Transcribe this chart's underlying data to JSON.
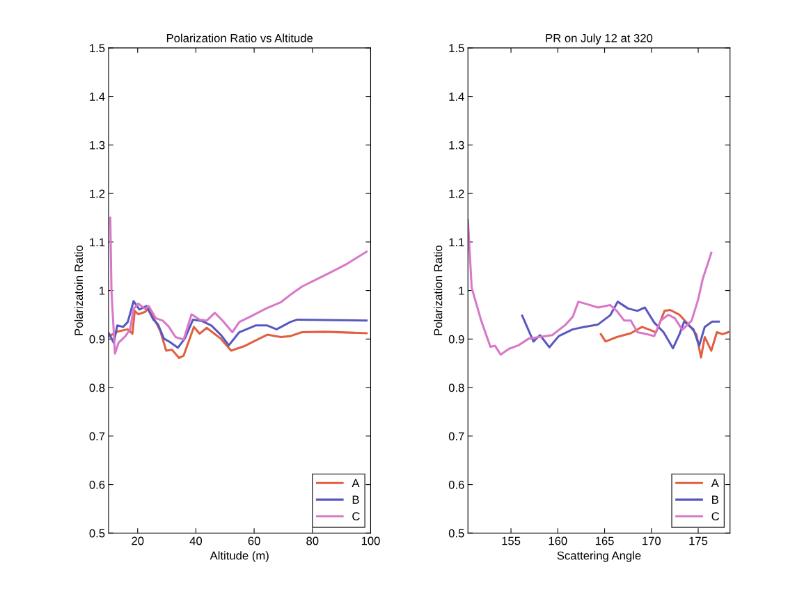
{
  "chart_data": [
    {
      "type": "line",
      "title": "Polarization Ratio vs Altitude",
      "xlabel": "Altitude (m)",
      "ylabel": "Polarizatoin Ratio",
      "xlim": [
        10,
        100
      ],
      "xticks": [
        20,
        40,
        60,
        80,
        100
      ],
      "ylim": [
        0.5,
        1.5
      ],
      "yticks": [
        0.5,
        0.6,
        0.7,
        0.8,
        0.9,
        1,
        1.1,
        1.2,
        1.3,
        1.4,
        1.5
      ],
      "grid": false,
      "legend": "bottom right",
      "series": [
        {
          "name": "A",
          "color": "#e06040",
          "x": [
            10.2,
            13.4,
            16.6,
            18.2,
            19.0,
            20.2,
            22.6,
            23.8,
            25.8,
            27.8,
            29.8,
            31.8,
            34.2,
            35.8,
            39.3,
            41.3,
            43.7,
            48.5,
            52.1,
            56.5,
            60.5,
            64.5,
            69.2,
            72.4,
            76.4,
            84.4,
            98.6
          ],
          "values": [
            0.906,
            0.916,
            0.92,
            0.911,
            0.958,
            0.951,
            0.956,
            0.965,
            0.94,
            0.916,
            0.876,
            0.878,
            0.861,
            0.866,
            0.925,
            0.911,
            0.923,
            0.901,
            0.876,
            0.885,
            0.897,
            0.909,
            0.904,
            0.906,
            0.914,
            0.915,
            0.912
          ]
        },
        {
          "name": "B",
          "color": "#5858c0",
          "x": [
            10.2,
            11.8,
            13.0,
            15.0,
            16.6,
            18.6,
            20.6,
            23.0,
            25.4,
            27.0,
            29.0,
            31.0,
            33.8,
            36.2,
            39.0,
            42.2,
            45.3,
            48.5,
            51.3,
            54.9,
            60.5,
            64.5,
            67.7,
            72.4,
            74.8,
            98.6
          ],
          "values": [
            0.911,
            0.892,
            0.928,
            0.925,
            0.935,
            0.978,
            0.961,
            0.968,
            0.94,
            0.93,
            0.901,
            0.894,
            0.882,
            0.901,
            0.94,
            0.937,
            0.928,
            0.909,
            0.887,
            0.914,
            0.928,
            0.928,
            0.92,
            0.935,
            0.94,
            0.938
          ]
        },
        {
          "name": "C",
          "color": "#d878c8",
          "x": [
            10.6,
            11.0,
            12.2,
            13.4,
            15.8,
            17.4,
            18.6,
            20.2,
            22.6,
            23.8,
            26.2,
            28.6,
            30.6,
            33.0,
            35.8,
            38.5,
            41.3,
            43.7,
            46.5,
            49.3,
            52.5,
            54.9,
            58.9,
            64.5,
            69.2,
            72.4,
            76.4,
            80.4,
            84.4,
            88.4,
            91.6,
            98.6
          ],
          "values": [
            1.15,
            1.0,
            0.87,
            0.892,
            0.906,
            0.92,
            0.962,
            0.973,
            0.962,
            0.968,
            0.943,
            0.938,
            0.926,
            0.904,
            0.899,
            0.951,
            0.94,
            0.938,
            0.954,
            0.937,
            0.914,
            0.935,
            0.947,
            0.964,
            0.976,
            0.991,
            1.008,
            1.02,
            1.032,
            1.044,
            1.054,
            1.08
          ]
        }
      ]
    },
    {
      "type": "line",
      "title": "PR on July 12 at 320",
      "xlabel": "Scattering Angle",
      "ylabel": "Polarization Ratio",
      "xlim": [
        150.4,
        178.4
      ],
      "xticks": [
        155,
        160,
        165,
        170,
        175
      ],
      "ylim": [
        0.5,
        1.5
      ],
      "yticks": [
        0.5,
        0.6,
        0.7,
        0.8,
        0.9,
        1,
        1.1,
        1.2,
        1.3,
        1.4,
        1.5
      ],
      "grid": false,
      "legend": "bottom right",
      "series": [
        {
          "name": "A",
          "color": "#e06040",
          "x": [
            164.6,
            165.1,
            166.3,
            167.8,
            169.0,
            170.5,
            171.4,
            172.0,
            173.0,
            174.0,
            174.8,
            175.3,
            175.7,
            176.4,
            177.0,
            177.6,
            178.2
          ],
          "values": [
            0.91,
            0.895,
            0.904,
            0.912,
            0.925,
            0.914,
            0.958,
            0.96,
            0.95,
            0.929,
            0.91,
            0.862,
            0.904,
            0.876,
            0.914,
            0.91,
            0.914
          ]
        },
        {
          "name": "B",
          "color": "#5858c0",
          "x": [
            156.2,
            157.4,
            158.1,
            159.1,
            160.1,
            161.6,
            162.8,
            164.3,
            165.6,
            166.4,
            167.5,
            168.5,
            169.3,
            170.3,
            171.3,
            172.3,
            173.0,
            173.5,
            174.5,
            175.1,
            175.7,
            176.5,
            177.2
          ],
          "values": [
            0.948,
            0.895,
            0.908,
            0.883,
            0.906,
            0.92,
            0.925,
            0.93,
            0.949,
            0.977,
            0.963,
            0.958,
            0.965,
            0.934,
            0.914,
            0.881,
            0.91,
            0.936,
            0.92,
            0.886,
            0.925,
            0.936,
            0.936
          ]
        },
        {
          "name": "C",
          "color": "#d878c8",
          "x": [
            150.4,
            150.8,
            151.8,
            152.8,
            153.3,
            153.9,
            154.8,
            155.8,
            156.9,
            159.4,
            160.8,
            161.6,
            162.2,
            163.1,
            164.3,
            165.6,
            166.3,
            167.1,
            167.8,
            168.5,
            169.5,
            170.3,
            171.0,
            171.8,
            172.5,
            173.3,
            174.3,
            175.0,
            175.5,
            176.0,
            176.4
          ],
          "values": [
            1.145,
            1.006,
            0.939,
            0.884,
            0.886,
            0.868,
            0.88,
            0.887,
            0.901,
            0.908,
            0.929,
            0.946,
            0.977,
            0.972,
            0.965,
            0.97,
            0.958,
            0.938,
            0.938,
            0.914,
            0.91,
            0.906,
            0.938,
            0.95,
            0.943,
            0.919,
            0.938,
            0.982,
            1.025,
            1.054,
            1.078
          ]
        }
      ]
    }
  ]
}
